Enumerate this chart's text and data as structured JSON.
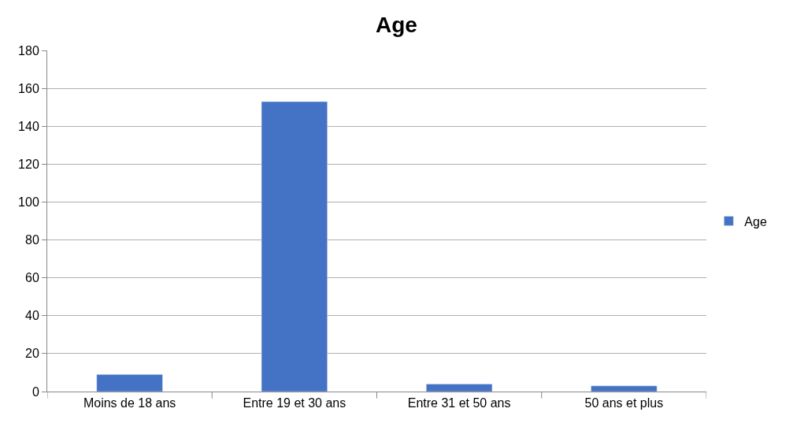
{
  "chart_data": {
    "type": "bar",
    "title": "Age",
    "categories": [
      "Moins de 18 ans",
      "Entre 19 et 30 ans",
      "Entre 31 et 50 ans",
      "50 ans et plus"
    ],
    "series": [
      {
        "name": "Age",
        "color": "#4472c4",
        "values": [
          9,
          153,
          4,
          3
        ]
      }
    ],
    "ylim": [
      0,
      180
    ],
    "yticks": [
      0,
      20,
      40,
      60,
      80,
      100,
      120,
      140,
      160,
      180
    ],
    "grid": "y",
    "legend": "right"
  }
}
